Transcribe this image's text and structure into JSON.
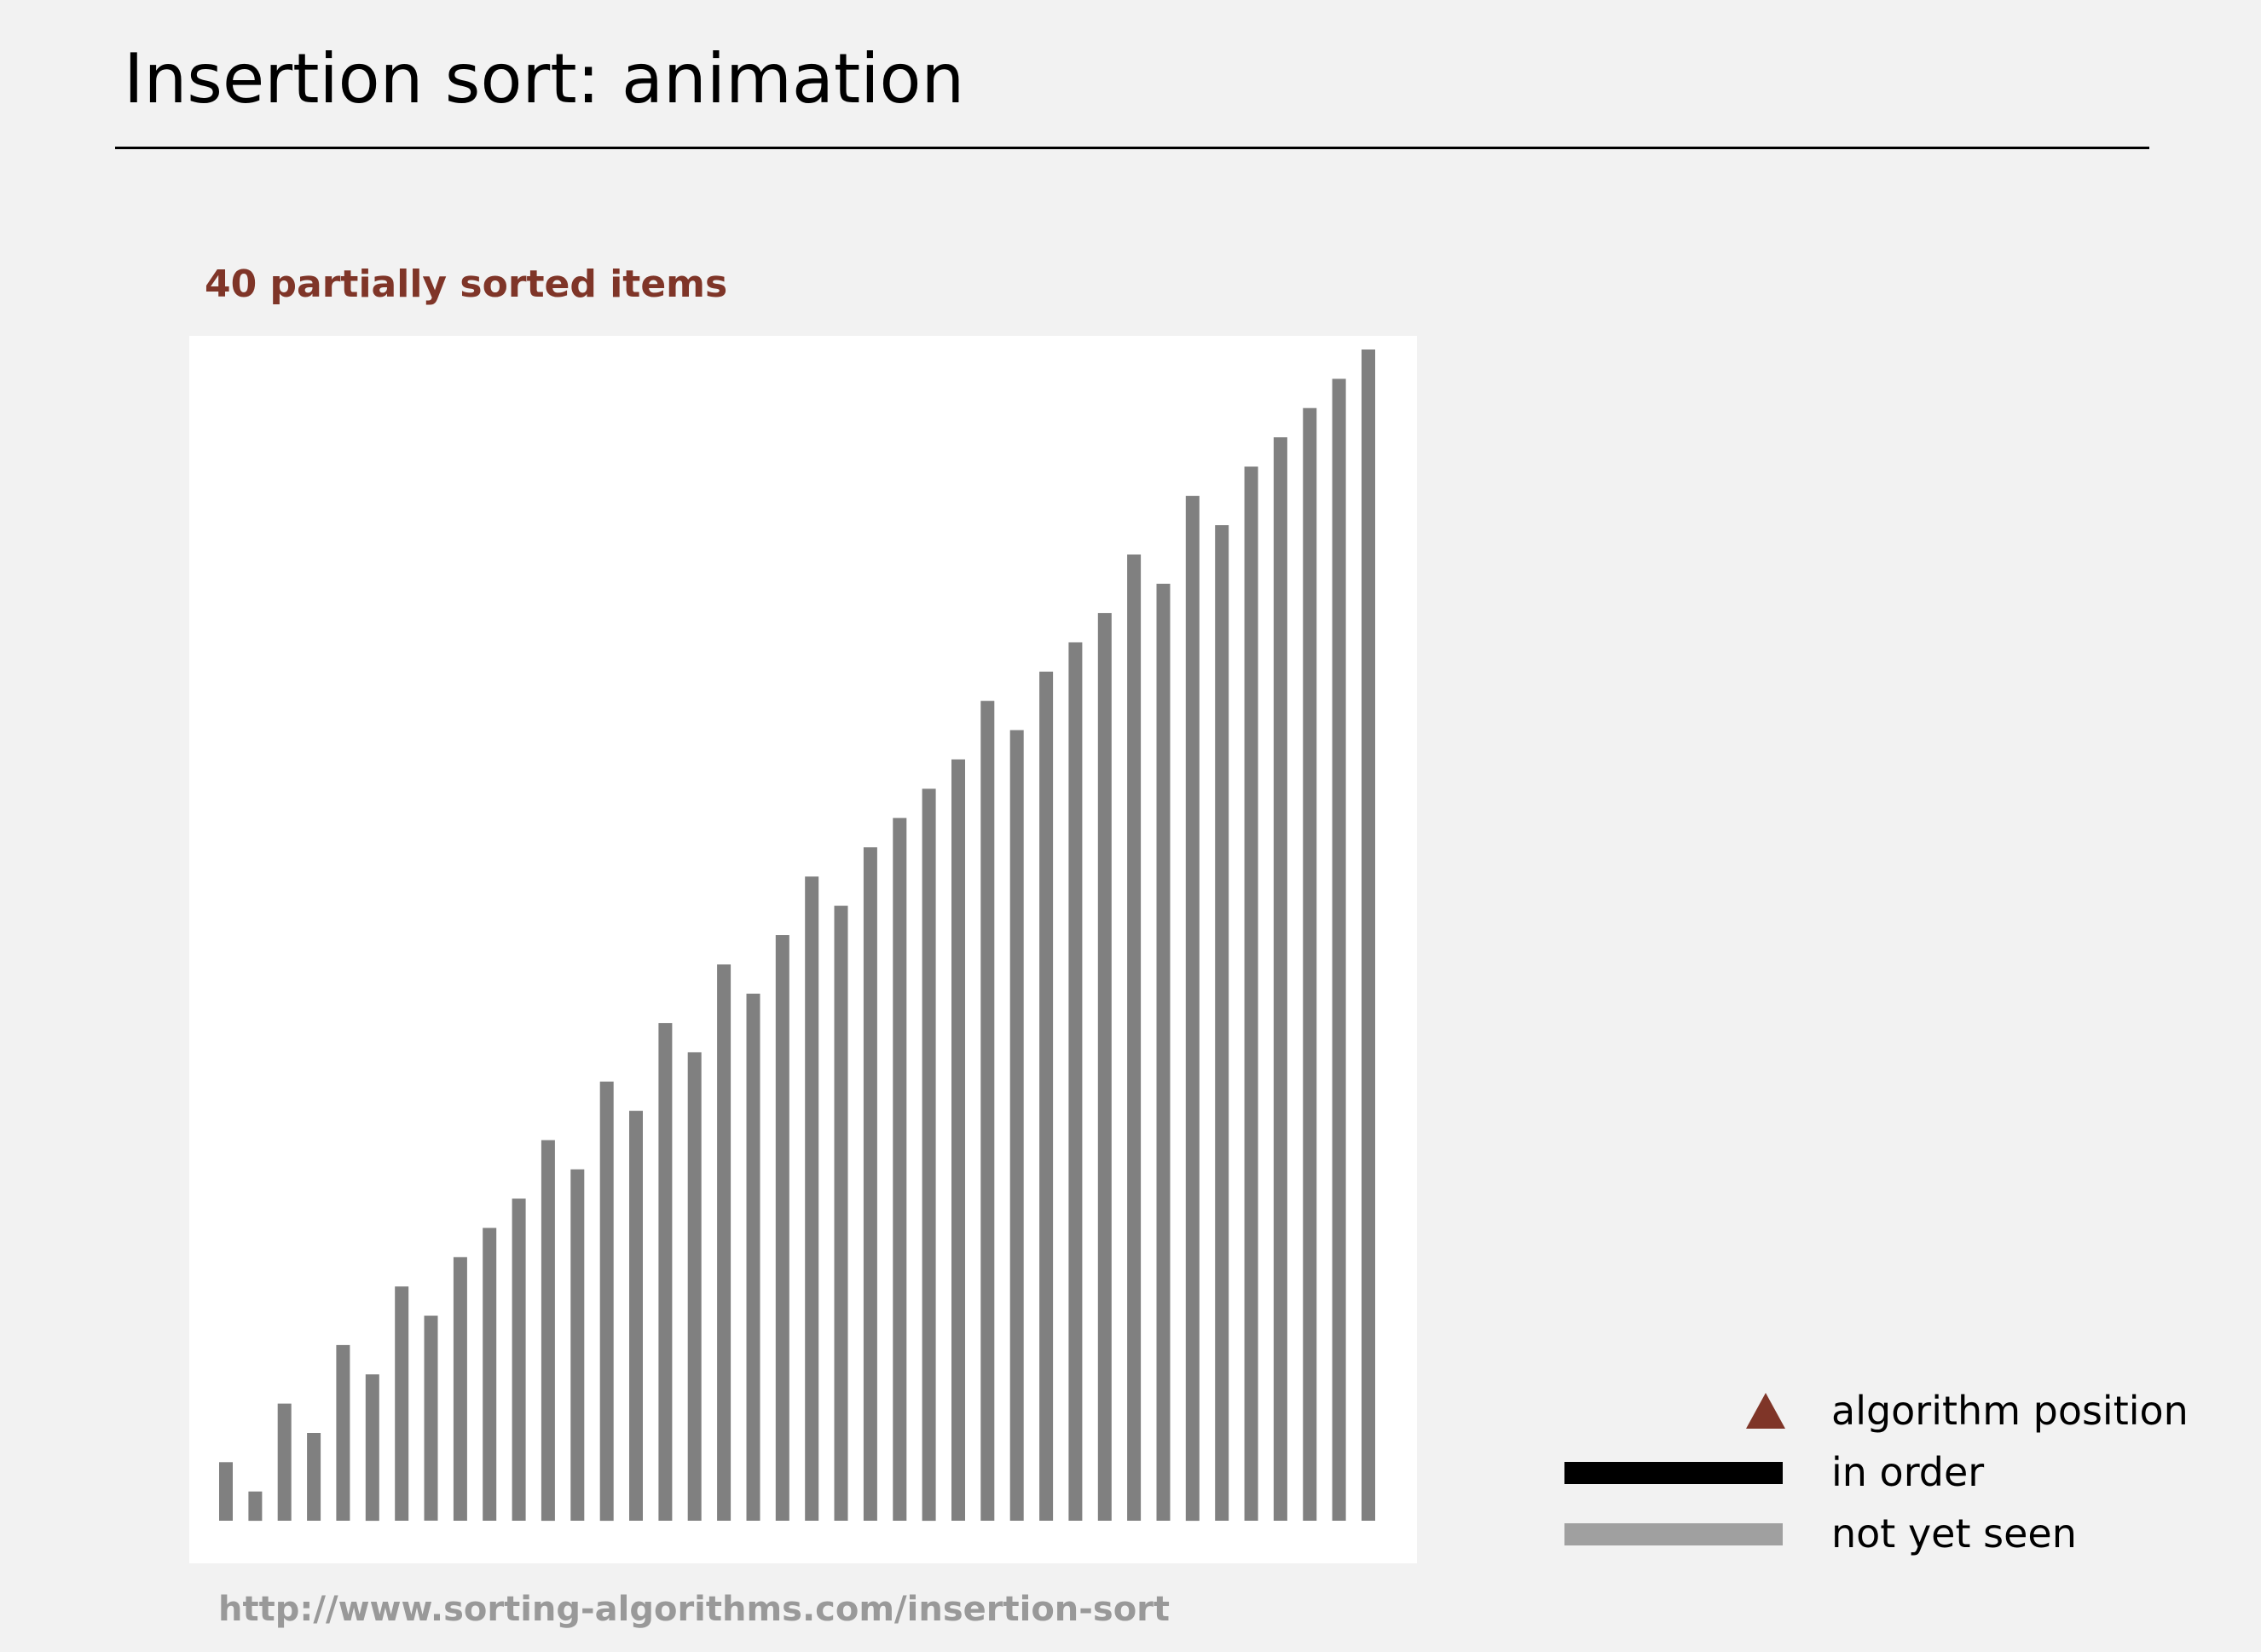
{
  "slide": {
    "title": "Insertion sort:  animation"
  },
  "panel": {
    "caption": "40 partially sorted items"
  },
  "source": {
    "url": "http://www.sorting-algorithms.com/insertion-sort"
  },
  "legend": {
    "items": [
      {
        "label": "algorithm position",
        "marker": "triangle-icon",
        "color": "#7f3528"
      },
      {
        "label": "in order",
        "marker": "line-swatch",
        "color": "#000000"
      },
      {
        "label": "not yet seen",
        "marker": "line-swatch",
        "color": "#a0a0a0"
      }
    ]
  },
  "chart_data": {
    "type": "bar",
    "categories": [
      1,
      2,
      3,
      4,
      5,
      6,
      7,
      8,
      9,
      10,
      11,
      12,
      13,
      14,
      15,
      16,
      17,
      18,
      19,
      20,
      21,
      22,
      23,
      24,
      25,
      26,
      27,
      28,
      29,
      30,
      31,
      32,
      33,
      34,
      35,
      36,
      37,
      38,
      39,
      40
    ],
    "values": [
      2,
      1,
      4,
      3,
      6,
      5,
      8,
      7,
      9,
      10,
      11,
      13,
      12,
      15,
      14,
      17,
      16,
      19,
      18,
      20,
      22,
      21,
      23,
      24,
      25,
      26,
      28,
      27,
      29,
      30,
      31,
      33,
      32,
      35,
      34,
      36,
      37,
      38,
      39,
      40
    ],
    "ylim": [
      0,
      40
    ],
    "bar_color": "#808080",
    "background": "#ffffff",
    "grid": false
  }
}
